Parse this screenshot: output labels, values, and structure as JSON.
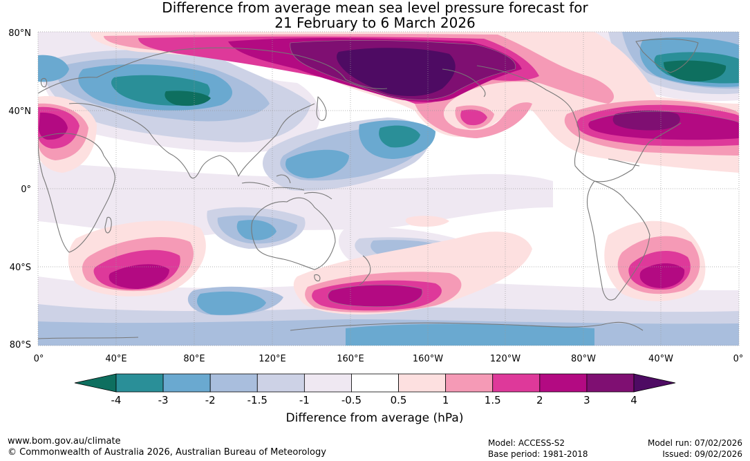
{
  "title": {
    "line1": "Difference from average mean sea level pressure forecast for",
    "line2": "21 February to 6 March 2026"
  },
  "axes": {
    "lat_ticks": [
      "80°N",
      "40°N",
      "0°",
      "40°S",
      "80°S"
    ],
    "lon_ticks": [
      "0°",
      "40°E",
      "80°E",
      "120°E",
      "160°E",
      "160°W",
      "120°W",
      "80°W",
      "40°W",
      "0°"
    ]
  },
  "colorbar": {
    "label": "Difference from average (hPa)",
    "ticks": [
      "-4",
      "-3",
      "-2",
      "-1.5",
      "-1",
      "-0.5",
      "0.5",
      "1",
      "1.5",
      "2",
      "3",
      "4"
    ],
    "colors": [
      "#0e6f5f",
      "#2a8f98",
      "#6aa9d0",
      "#a9bedd",
      "#cdd2e6",
      "#efe8f2",
      "#ffffff",
      "#fde0e0",
      "#f59ab6",
      "#de399a",
      "#b30a82",
      "#7f0f72",
      "#4e0b63"
    ]
  },
  "footer": {
    "website": "www.bom.gov.au/climate",
    "copyright": "© Commonwealth of Australia 2026, Australian Bureau of Meteorology",
    "model": "Model: ACCESS-S2",
    "base_period": "Base period: 1981-2018",
    "model_run": "Model run: 07/02/2026",
    "issued": "Issued: 09/02/2026"
  }
}
